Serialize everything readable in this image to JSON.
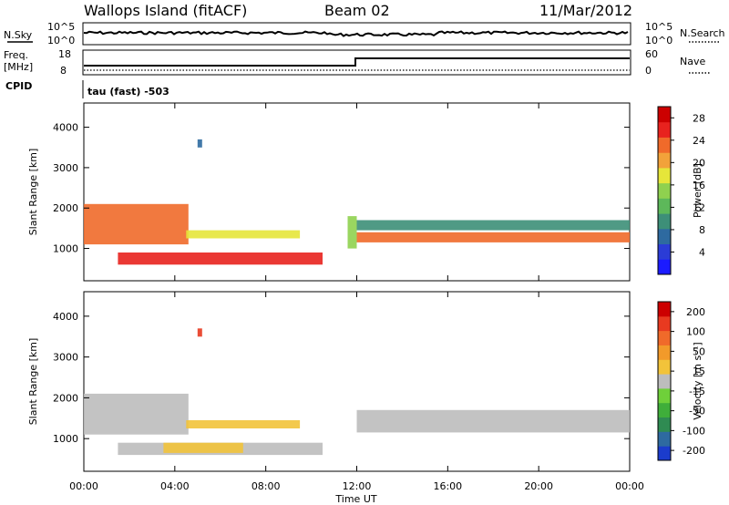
{
  "header": {
    "title": "Wallops Island (fitACF)",
    "beam": "Beam 02",
    "date": "11/Mar/2012"
  },
  "panels": {
    "nsky": {
      "left_label": "N.Sky",
      "right_label": "N.Search",
      "left_ticks": [
        "10^5",
        "10^0"
      ],
      "right_ticks": [
        "10^5",
        "10^0"
      ]
    },
    "freq": {
      "label_line1": "Freq.",
      "label_line2": "[MHz]",
      "left_ticks": [
        "18",
        "8"
      ],
      "right_ticks": [
        "60",
        "0"
      ],
      "right_label": "Nave"
    },
    "cpid": {
      "label": "CPID",
      "value_text": "tau (fast) -503"
    }
  },
  "chart_data": [
    {
      "type": "heatmap",
      "title": "",
      "xlabel": "Time UT",
      "ylabel": "Slant Range [km]",
      "xlim": [
        0,
        24
      ],
      "ylim": [
        200,
        4600
      ],
      "x_ticks": [
        "00:00",
        "04:00",
        "08:00",
        "12:00",
        "16:00",
        "20:00",
        "00:00"
      ],
      "y_ticks": [
        1000,
        2000,
        3000,
        4000
      ],
      "colorbar": {
        "label": "Power [dB]",
        "ticks": [
          4,
          8,
          12,
          16,
          20,
          24,
          28
        ],
        "range": [
          0,
          30
        ],
        "colors": [
          "#1b1bff",
          "#2b3cd6",
          "#2e6aa0",
          "#3d8f78",
          "#5db85a",
          "#8fd14f",
          "#e6e63a",
          "#f2a23a",
          "#f06a2a",
          "#e8221e",
          "#cc0000"
        ]
      },
      "bands": [
        {
          "t0": 0.0,
          "t1": 4.6,
          "r0": 1100,
          "r1": 2100,
          "power": 22
        },
        {
          "t0": 1.5,
          "t1": 10.5,
          "r0": 600,
          "r1": 900,
          "power": 26
        },
        {
          "t0": 4.5,
          "t1": 9.5,
          "r0": 1250,
          "r1": 1450,
          "power": 18
        },
        {
          "t0": 11.6,
          "t1": 12.0,
          "r0": 1000,
          "r1": 1800,
          "power": 16
        },
        {
          "t0": 12.0,
          "t1": 24.0,
          "r0": 1150,
          "r1": 1400,
          "power": 24
        },
        {
          "t0": 12.0,
          "t1": 24.0,
          "r0": 1450,
          "r1": 1700,
          "power": 10
        },
        {
          "t0": 5.0,
          "t1": 5.2,
          "r0": 3500,
          "r1": 3700,
          "power": 6
        }
      ]
    },
    {
      "type": "heatmap",
      "title": "",
      "xlabel": "Time UT",
      "ylabel": "Slant Range [km]",
      "xlim": [
        0,
        24
      ],
      "ylim": [
        200,
        4600
      ],
      "x_ticks": [
        "00:00",
        "04:00",
        "08:00",
        "12:00",
        "16:00",
        "20:00",
        "00:00"
      ],
      "y_ticks": [
        1000,
        2000,
        3000,
        4000
      ],
      "colorbar": {
        "label": "Velocity [m s⁻¹]",
        "ticks": [
          "200",
          "100",
          "50",
          "15",
          "-15",
          "-50",
          "-100",
          "-200"
        ],
        "range": [
          -250,
          250
        ],
        "colors": [
          "#1b3ccc",
          "#2e6aa0",
          "#2f8b52",
          "#3fae3a",
          "#6fd03a",
          "#bdbdbd",
          "#f2c33a",
          "#f29a2a",
          "#f06a2a",
          "#e83a20",
          "#cc0000"
        ]
      },
      "bands": [
        {
          "t0": 0.0,
          "t1": 4.6,
          "r0": 1100,
          "r1": 2100,
          "velocity": 0
        },
        {
          "t0": 1.5,
          "t1": 10.5,
          "r0": 600,
          "r1": 900,
          "velocity": 0
        },
        {
          "t0": 3.5,
          "t1": 7.0,
          "r0": 650,
          "r1": 900,
          "velocity": 40
        },
        {
          "t0": 4.5,
          "t1": 9.5,
          "r0": 1250,
          "r1": 1450,
          "velocity": 30
        },
        {
          "t0": 12.0,
          "t1": 24.0,
          "r0": 1150,
          "r1": 1700,
          "velocity": 0
        },
        {
          "t0": 5.0,
          "t1": 5.2,
          "r0": 3500,
          "r1": 3700,
          "velocity": 200
        }
      ]
    }
  ]
}
